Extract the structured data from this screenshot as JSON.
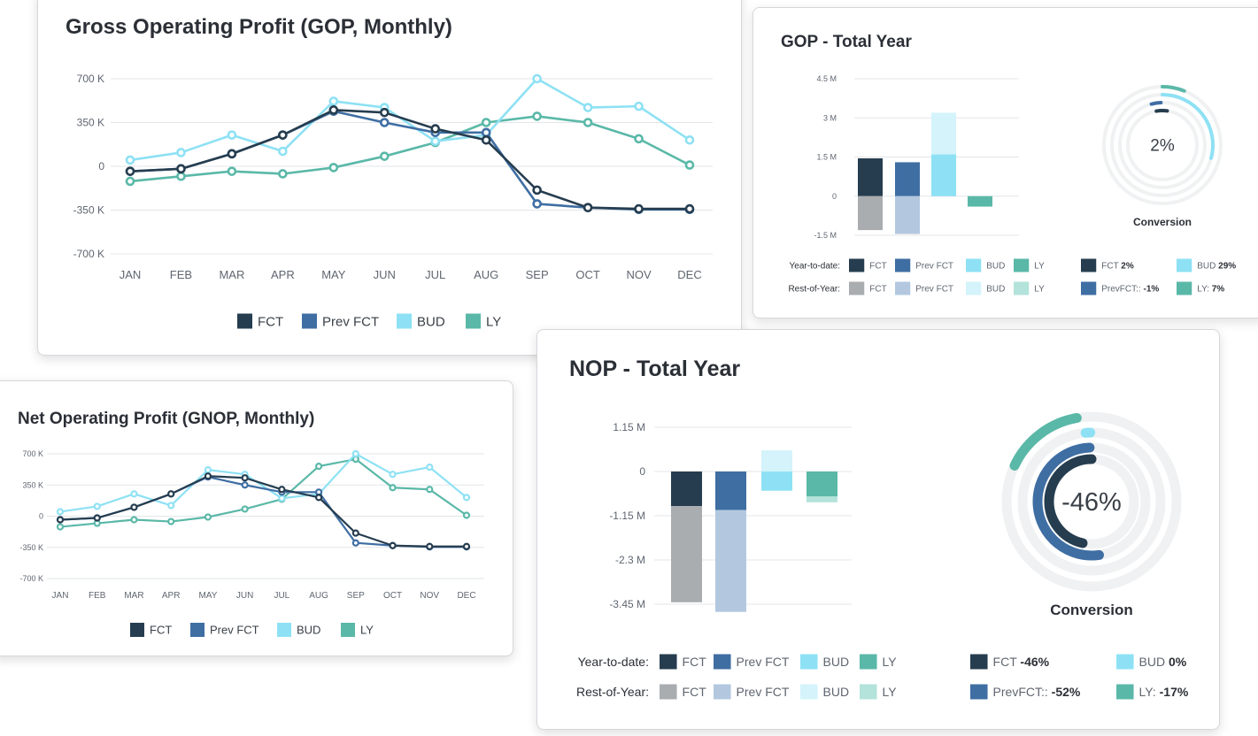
{
  "colors": {
    "fct": "#263d4f",
    "prev_fct": "#3f6ea3",
    "bud": "#8ee1f4",
    "ly": "#5ab8a8",
    "fct_rest": "#a9adb0",
    "prev_fct_rest": "#b3c8df",
    "bud_rest": "#d4f3fb",
    "ly_rest": "#b3e3da"
  },
  "gop_monthly": {
    "title": "Gross Operating Profit (GOP, Monthly)",
    "legend": [
      "FCT",
      "Prev FCT",
      "BUD",
      "LY"
    ]
  },
  "gnop_monthly": {
    "title": "Net Operating Profit (GNOP, Monthly)",
    "legend": [
      "FCT",
      "Prev FCT",
      "BUD",
      "LY"
    ]
  },
  "gop_total": {
    "title": "GOP - Total Year",
    "center_value": "2%",
    "gauge_label": "Conversion",
    "row_labels": {
      "ytd": "Year-to-date:",
      "roy": "Rest-of-Year:"
    },
    "legend_ytd": [
      "FCT",
      "Prev FCT",
      "BUD",
      "LY"
    ],
    "legend_roy": [
      "FCT",
      "Prev FCT",
      "BUD",
      "LY"
    ],
    "kpis": [
      {
        "label": "FCT",
        "value": "2%"
      },
      {
        "label": "BUD",
        "value": "29%"
      },
      {
        "label": "PrevFCT::",
        "value": "-1%"
      },
      {
        "label": "LY:",
        "value": "7%"
      }
    ]
  },
  "nop_total": {
    "title": "NOP - Total Year",
    "center_value": "-46%",
    "gauge_label": "Conversion",
    "row_labels": {
      "ytd": "Year-to-date:",
      "roy": "Rest-of-Year:"
    },
    "legend_ytd": [
      "FCT",
      "Prev FCT",
      "BUD",
      "LY"
    ],
    "legend_roy": [
      "FCT",
      "Prev FCT",
      "BUD",
      "LY"
    ],
    "kpis": [
      {
        "label": "FCT",
        "value": "-46%"
      },
      {
        "label": "BUD",
        "value": "0%"
      },
      {
        "label": "PrevFCT::",
        "value": "-52%"
      },
      {
        "label": "LY:",
        "value": "-17%"
      }
    ]
  },
  "chart_data": [
    {
      "type": "line",
      "title": "Gross Operating Profit (GOP, Monthly)",
      "x": [
        "JAN",
        "FEB",
        "MAR",
        "APR",
        "MAY",
        "JUN",
        "JUL",
        "AUG",
        "SEP",
        "OCT",
        "NOV",
        "DEC"
      ],
      "y_ticks": [
        "700 K",
        "350 K",
        "0",
        "-350 K",
        "-700 K"
      ],
      "ylim": [
        -700,
        700
      ],
      "y_unit": "K",
      "grid": true,
      "legend_position": "bottom",
      "series": [
        {
          "name": "FCT",
          "values": [
            -40,
            -20,
            100,
            250,
            450,
            430,
            300,
            210,
            -190,
            -330,
            -340,
            -340
          ]
        },
        {
          "name": "Prev FCT",
          "values": [
            -40,
            -20,
            100,
            250,
            440,
            350,
            270,
            270,
            -300,
            -330,
            -345,
            -345
          ]
        },
        {
          "name": "BUD",
          "values": [
            50,
            110,
            250,
            120,
            520,
            470,
            200,
            250,
            700,
            470,
            480,
            210
          ]
        },
        {
          "name": "LY",
          "values": [
            -120,
            -80,
            -40,
            -60,
            -10,
            80,
            190,
            350,
            400,
            350,
            220,
            10
          ]
        }
      ]
    },
    {
      "type": "line",
      "title": "Net Operating Profit (GNOP, Monthly)",
      "x": [
        "JAN",
        "FEB",
        "MAR",
        "APR",
        "MAY",
        "JUN",
        "JUL",
        "AUG",
        "SEP",
        "OCT",
        "NOV",
        "DEC"
      ],
      "y_ticks": [
        "700 K",
        "350 K",
        "0",
        "-350 K",
        "-700 K"
      ],
      "ylim": [
        -700,
        700
      ],
      "y_unit": "K",
      "grid": true,
      "legend_position": "bottom",
      "series": [
        {
          "name": "FCT",
          "values": [
            -40,
            -20,
            100,
            250,
            450,
            430,
            300,
            210,
            -190,
            -330,
            -340,
            -340
          ]
        },
        {
          "name": "Prev FCT",
          "values": [
            -40,
            -20,
            100,
            250,
            440,
            350,
            270,
            270,
            -300,
            -330,
            -345,
            -345
          ]
        },
        {
          "name": "BUD",
          "values": [
            50,
            110,
            250,
            120,
            520,
            470,
            200,
            250,
            700,
            470,
            550,
            210
          ]
        },
        {
          "name": "LY",
          "values": [
            -120,
            -80,
            -40,
            -60,
            -10,
            80,
            190,
            560,
            640,
            320,
            300,
            10
          ]
        }
      ]
    },
    {
      "type": "bar",
      "title": "GOP - Total Year",
      "y_ticks": [
        "4.5 M",
        "3 M",
        "1.5 M",
        "0",
        "-1.5 M"
      ],
      "ylim": [
        -1.5,
        4.5
      ],
      "y_unit": "M",
      "stacked": true,
      "categories": [
        "FCT",
        "Prev FCT",
        "BUD",
        "LY"
      ],
      "series": [
        {
          "name": "Year-to-date",
          "values": [
            1.45,
            1.3,
            1.6,
            -0.4
          ]
        },
        {
          "name": "Rest-of-Year",
          "values": [
            -1.3,
            -1.45,
            1.6,
            0
          ]
        }
      ],
      "gauge": {
        "center": "2%",
        "label": "Conversion",
        "values": [
          {
            "name": "FCT",
            "value": 2
          },
          {
            "name": "Prev FCT",
            "value": -1
          },
          {
            "name": "BUD",
            "value": 29
          },
          {
            "name": "LY",
            "value": 7
          }
        ]
      }
    },
    {
      "type": "bar",
      "title": "NOP - Total Year",
      "y_ticks": [
        "1.15 M",
        "0",
        "-1.15 M",
        "-2.3 M",
        "-3.45 M"
      ],
      "ylim": [
        -3.45,
        1.15
      ],
      "y_unit": "M",
      "stacked": true,
      "categories": [
        "FCT",
        "Prev FCT",
        "BUD",
        "LY"
      ],
      "series": [
        {
          "name": "Year-to-date",
          "values": [
            -0.9,
            -1.0,
            -0.5,
            -0.65
          ]
        },
        {
          "name": "Rest-of-Year",
          "values": [
            -2.5,
            -2.65,
            0.55,
            -0.15
          ]
        }
      ],
      "gauge": {
        "center": "-46%",
        "label": "Conversion",
        "values": [
          {
            "name": "FCT",
            "value": -46
          },
          {
            "name": "Prev FCT",
            "value": -52
          },
          {
            "name": "BUD",
            "value": 0
          },
          {
            "name": "LY",
            "value": -17
          }
        ]
      }
    }
  ]
}
